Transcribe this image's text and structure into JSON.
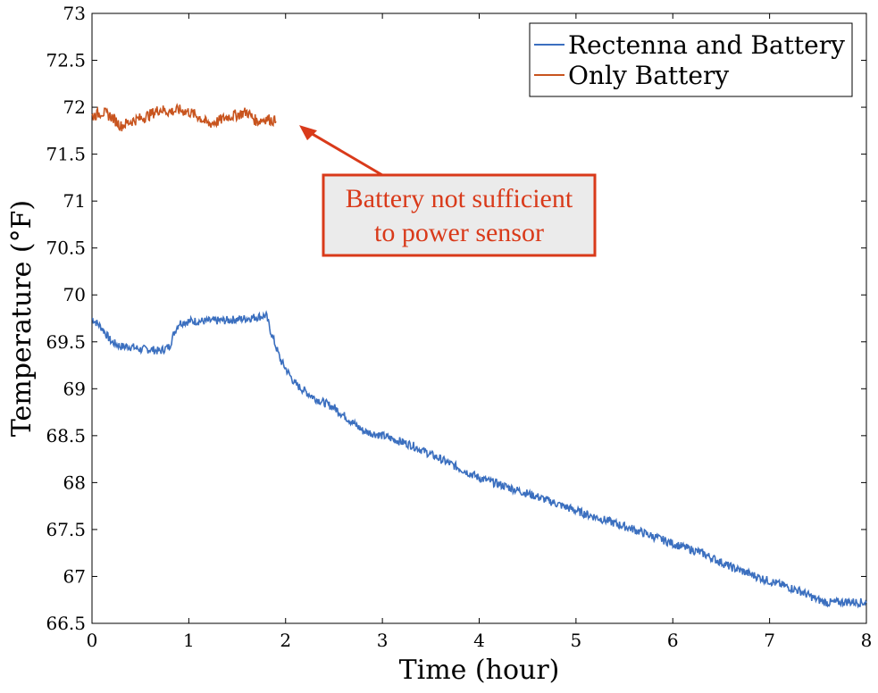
{
  "chart_data": {
    "type": "line",
    "title": "",
    "xlabel": "Time (hour)",
    "ylabel": "Temperature (°F)",
    "xlim": [
      0,
      8
    ],
    "ylim": [
      66.5,
      73
    ],
    "x_ticks": [
      0,
      1,
      2,
      3,
      4,
      5,
      6,
      7,
      8
    ],
    "y_ticks": [
      66.5,
      67,
      67.5,
      68,
      68.5,
      69,
      69.5,
      70,
      70.5,
      71,
      71.5,
      72,
      72.5,
      73
    ],
    "x_tick_labels": [
      "0",
      "1",
      "2",
      "3",
      "4",
      "5",
      "6",
      "7",
      "8"
    ],
    "y_tick_labels": [
      "66.5",
      "67",
      "67.5",
      "68",
      "68.5",
      "69",
      "69.5",
      "70",
      "70.5",
      "71",
      "71.5",
      "72",
      "72.5",
      "73"
    ],
    "grid": false,
    "legend_position": "top-right",
    "series": [
      {
        "name": "Rectenna and Battery",
        "color": "#3B6FBF",
        "x": [
          0,
          0.1,
          0.2,
          0.3,
          0.4,
          0.5,
          0.6,
          0.7,
          0.8,
          0.85,
          0.9,
          1.0,
          1.2,
          1.4,
          1.6,
          1.8,
          1.85,
          1.95,
          2.1,
          2.3,
          2.5,
          2.8,
          3.0,
          3.3,
          3.6,
          4.0,
          4.3,
          4.6,
          5.0,
          5.3,
          5.6,
          6.0,
          6.3,
          6.6,
          7.0,
          7.3,
          7.5,
          7.6,
          7.8,
          8.0
        ],
        "y": [
          69.75,
          69.65,
          69.5,
          69.45,
          69.45,
          69.42,
          69.42,
          69.4,
          69.45,
          69.6,
          69.7,
          69.72,
          69.72,
          69.73,
          69.75,
          69.78,
          69.6,
          69.3,
          69.05,
          68.9,
          68.8,
          68.55,
          68.5,
          68.4,
          68.25,
          68.05,
          67.95,
          67.85,
          67.7,
          67.6,
          67.5,
          67.35,
          67.25,
          67.1,
          66.95,
          66.85,
          66.75,
          66.72,
          66.73,
          66.72
        ]
      },
      {
        "name": "Only Battery",
        "color": "#C8541E",
        "x": [
          0,
          0.1,
          0.2,
          0.3,
          0.4,
          0.5,
          0.6,
          0.7,
          0.8,
          0.9,
          1.0,
          1.1,
          1.2,
          1.3,
          1.4,
          1.5,
          1.6,
          1.7,
          1.8,
          1.9
        ],
        "y": [
          71.9,
          71.95,
          71.9,
          71.8,
          71.85,
          71.88,
          71.92,
          71.98,
          71.95,
          71.97,
          71.95,
          71.9,
          71.82,
          71.85,
          71.9,
          71.92,
          71.95,
          71.85,
          71.88,
          71.85
        ]
      }
    ],
    "annotation": {
      "text_line1": "Battery not sufficient",
      "text_line2": "to power sensor",
      "color": "#D93A1A",
      "box_fill": "#EBEBEB",
      "arrow_target": [
        2.15,
        71.8
      ]
    }
  }
}
